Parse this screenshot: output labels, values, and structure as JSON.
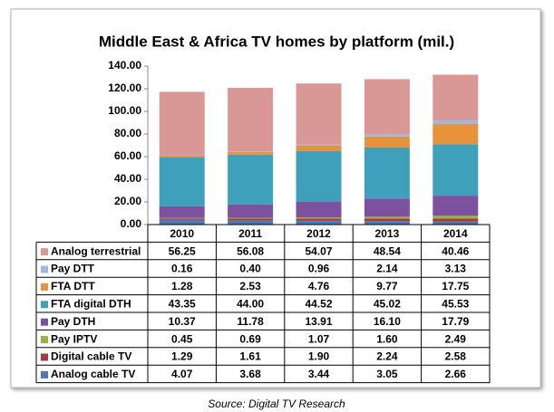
{
  "chart_data": {
    "type": "stacked-bar-table",
    "title": "Middle East & Africa TV homes by platform (mil.)",
    "source": "Source: Digital TV Research",
    "categories": [
      "2010",
      "2011",
      "2012",
      "2013",
      "2014"
    ],
    "ylim": [
      0,
      140
    ],
    "yticks": [
      {
        "value": 0,
        "label": "0.00"
      },
      {
        "value": 20,
        "label": "20.00"
      },
      {
        "value": 40,
        "label": "40.00"
      },
      {
        "value": 60,
        "label": "60.00"
      },
      {
        "value": 80,
        "label": "80.00"
      },
      {
        "value": 100,
        "label": "100.00"
      },
      {
        "value": 120,
        "label": "120.00"
      },
      {
        "value": 140,
        "label": "140.00"
      }
    ],
    "series": [
      {
        "name": "Analog terrestrial",
        "color": "#d99795",
        "values": [
          56.25,
          56.08,
          54.07,
          48.54,
          40.46
        ],
        "value_labels": [
          "56.25",
          "56.08",
          "54.07",
          "48.54",
          "40.46"
        ]
      },
      {
        "name": "Pay DTT",
        "color": "#9db9e2",
        "values": [
          0.16,
          0.4,
          0.96,
          2.14,
          3.13
        ],
        "value_labels": [
          "0.16",
          "0.40",
          "0.96",
          "2.14",
          "3.13"
        ]
      },
      {
        "name": "FTA DTT",
        "color": "#e8923c",
        "values": [
          1.28,
          2.53,
          4.76,
          9.77,
          17.75
        ],
        "value_labels": [
          "1.28",
          "2.53",
          "4.76",
          "9.77",
          "17.75"
        ]
      },
      {
        "name": "FTA digital DTH",
        "color": "#3fa0bb",
        "values": [
          43.35,
          44.0,
          44.52,
          45.02,
          45.53
        ],
        "value_labels": [
          "43.35",
          "44.00",
          "44.52",
          "45.02",
          "45.53"
        ]
      },
      {
        "name": "Pay DTH",
        "color": "#7c519f",
        "values": [
          10.37,
          11.78,
          13.91,
          16.1,
          17.79
        ],
        "value_labels": [
          "10.37",
          "11.78",
          "13.91",
          "16.10",
          "17.79"
        ]
      },
      {
        "name": "Pay IPTV",
        "color": "#94b444",
        "values": [
          0.45,
          0.69,
          1.07,
          1.6,
          2.49
        ],
        "value_labels": [
          "0.45",
          "0.69",
          "1.07",
          "1.60",
          "2.49"
        ]
      },
      {
        "name": "Digital cable TV",
        "color": "#a93a3a",
        "values": [
          1.29,
          1.61,
          1.9,
          2.24,
          2.58
        ],
        "value_labels": [
          "1.29",
          "1.61",
          "1.90",
          "2.24",
          "2.58"
        ]
      },
      {
        "name": "Analog cable TV",
        "color": "#4a7ab8",
        "values": [
          4.07,
          3.68,
          3.44,
          3.05,
          2.66
        ],
        "value_labels": [
          "4.07",
          "3.68",
          "3.44",
          "3.05",
          "2.66"
        ]
      }
    ]
  }
}
